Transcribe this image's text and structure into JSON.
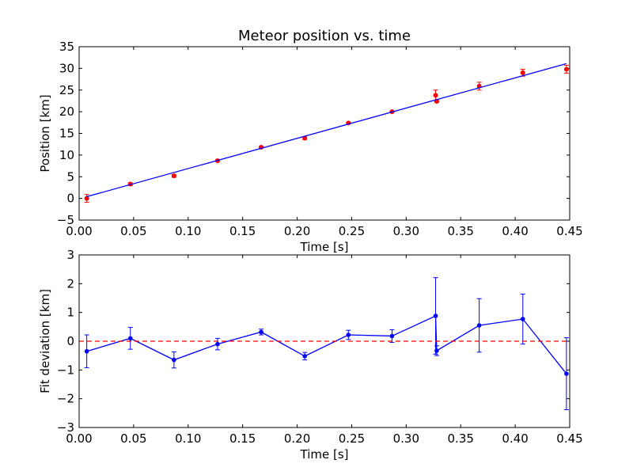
{
  "chart_data": [
    {
      "type": "scatter",
      "title": "Meteor position vs. time",
      "xlabel": "Time [s]",
      "ylabel": "Position [km]",
      "xlim": [
        0.0,
        0.45
      ],
      "ylim": [
        -5,
        35
      ],
      "xticks": [
        "0.00",
        "0.05",
        "0.10",
        "0.15",
        "0.20",
        "0.25",
        "0.30",
        "0.35",
        "0.40",
        "0.45"
      ],
      "yticks": [
        "−5",
        "0",
        "5",
        "10",
        "15",
        "20",
        "25",
        "30",
        "35"
      ],
      "grid": false,
      "series": [
        {
          "kind": "errorbar-points",
          "color": "#ff0000",
          "x": [
            0.007,
            0.047,
            0.087,
            0.127,
            0.167,
            0.207,
            0.247,
            0.287,
            0.327,
            0.328,
            0.367,
            0.407,
            0.447
          ],
          "y": [
            0.0,
            3.3,
            5.2,
            8.7,
            11.8,
            13.9,
            17.4,
            20.0,
            23.8,
            22.4,
            25.9,
            29.0,
            29.8
          ],
          "yerr": [
            0.9,
            0.3,
            0.3,
            0.2,
            0.2,
            0.3,
            0.15,
            0.15,
            1.2,
            0.2,
            0.9,
            0.8,
            0.9
          ]
        },
        {
          "kind": "fit-line",
          "color": "#0000ff",
          "x": [
            0.007,
            0.447
          ],
          "y": [
            0.4,
            31.1
          ]
        }
      ]
    },
    {
      "type": "line",
      "xlabel": "Time [s]",
      "ylabel": "Fit deviation [km]",
      "xlim": [
        0.0,
        0.45
      ],
      "ylim": [
        -3,
        3
      ],
      "xticks": [
        "0.00",
        "0.05",
        "0.10",
        "0.15",
        "0.20",
        "0.25",
        "0.30",
        "0.35",
        "0.40",
        "0.45"
      ],
      "yticks": [
        "−3",
        "−2",
        "−1",
        "0",
        "1",
        "2",
        "3"
      ],
      "grid": false,
      "series": [
        {
          "kind": "errorbar-line",
          "color": "#0000ff",
          "x": [
            0.007,
            0.047,
            0.087,
            0.127,
            0.167,
            0.207,
            0.247,
            0.287,
            0.327,
            0.328,
            0.367,
            0.407,
            0.447
          ],
          "y": [
            -0.35,
            0.1,
            -0.65,
            -0.1,
            0.32,
            -0.52,
            0.22,
            0.18,
            0.88,
            -0.33,
            0.55,
            0.77,
            -1.13
          ],
          "yerr": [
            0.57,
            0.38,
            0.28,
            0.2,
            0.1,
            0.13,
            0.16,
            0.22,
            1.33,
            0.17,
            0.93,
            0.87,
            1.25
          ]
        },
        {
          "kind": "reference-line",
          "color": "#ff0000",
          "dashed": true,
          "y": 0
        }
      ]
    }
  ]
}
